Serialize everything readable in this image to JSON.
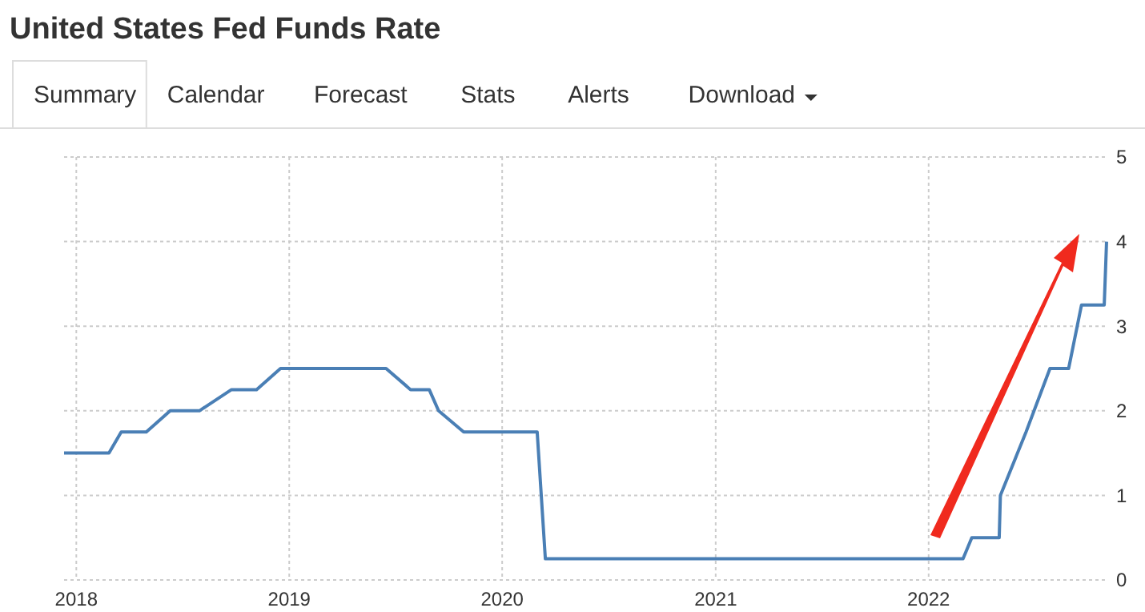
{
  "chart_data": {
    "type": "line",
    "title": "United States Fed Funds Rate",
    "annotations": [
      "Summary",
      "Calendar",
      "Forecast",
      "Stats",
      "Alerts",
      "Download"
    ],
    "x": [
      "2017-12-11",
      "2018-02-26",
      "2018-03-19",
      "2018-05-01",
      "2018-06-11",
      "2018-07-31",
      "2018-09-24",
      "2018-11-06",
      "2018-12-17",
      "2019-06-16",
      "2019-07-28",
      "2019-08-29",
      "2019-09-14",
      "2019-10-27",
      "2020-03-01",
      "2020-03-15",
      "2022-03-01",
      "2022-03-16",
      "2022-05-02",
      "2022-05-04",
      "2022-06-17",
      "2022-07-28",
      "2022-08-29",
      "2022-09-20",
      "2022-10-29",
      "2022-11-02"
    ],
    "series": [
      {
        "color": "#4a7fb5",
        "values": [
          1.5,
          1.5,
          1.75,
          1.75,
          2.0,
          2.0,
          2.25,
          2.25,
          2.5,
          2.5,
          2.25,
          2.25,
          2.0,
          1.75,
          1.75,
          0.25,
          0.25,
          0.5,
          0.5,
          1.0,
          1.75,
          2.5,
          2.5,
          3.25,
          3.25,
          4.0
        ]
      }
    ],
    "xlim": [
      "2017-12-11",
      "2022-11-02"
    ],
    "xticks": [
      "2018",
      "2019",
      "2020",
      "2021",
      "2022"
    ],
    "ylim": [
      0,
      5
    ],
    "yticks": [
      0,
      1,
      2,
      3,
      4,
      5
    ],
    "grid": true
  }
}
